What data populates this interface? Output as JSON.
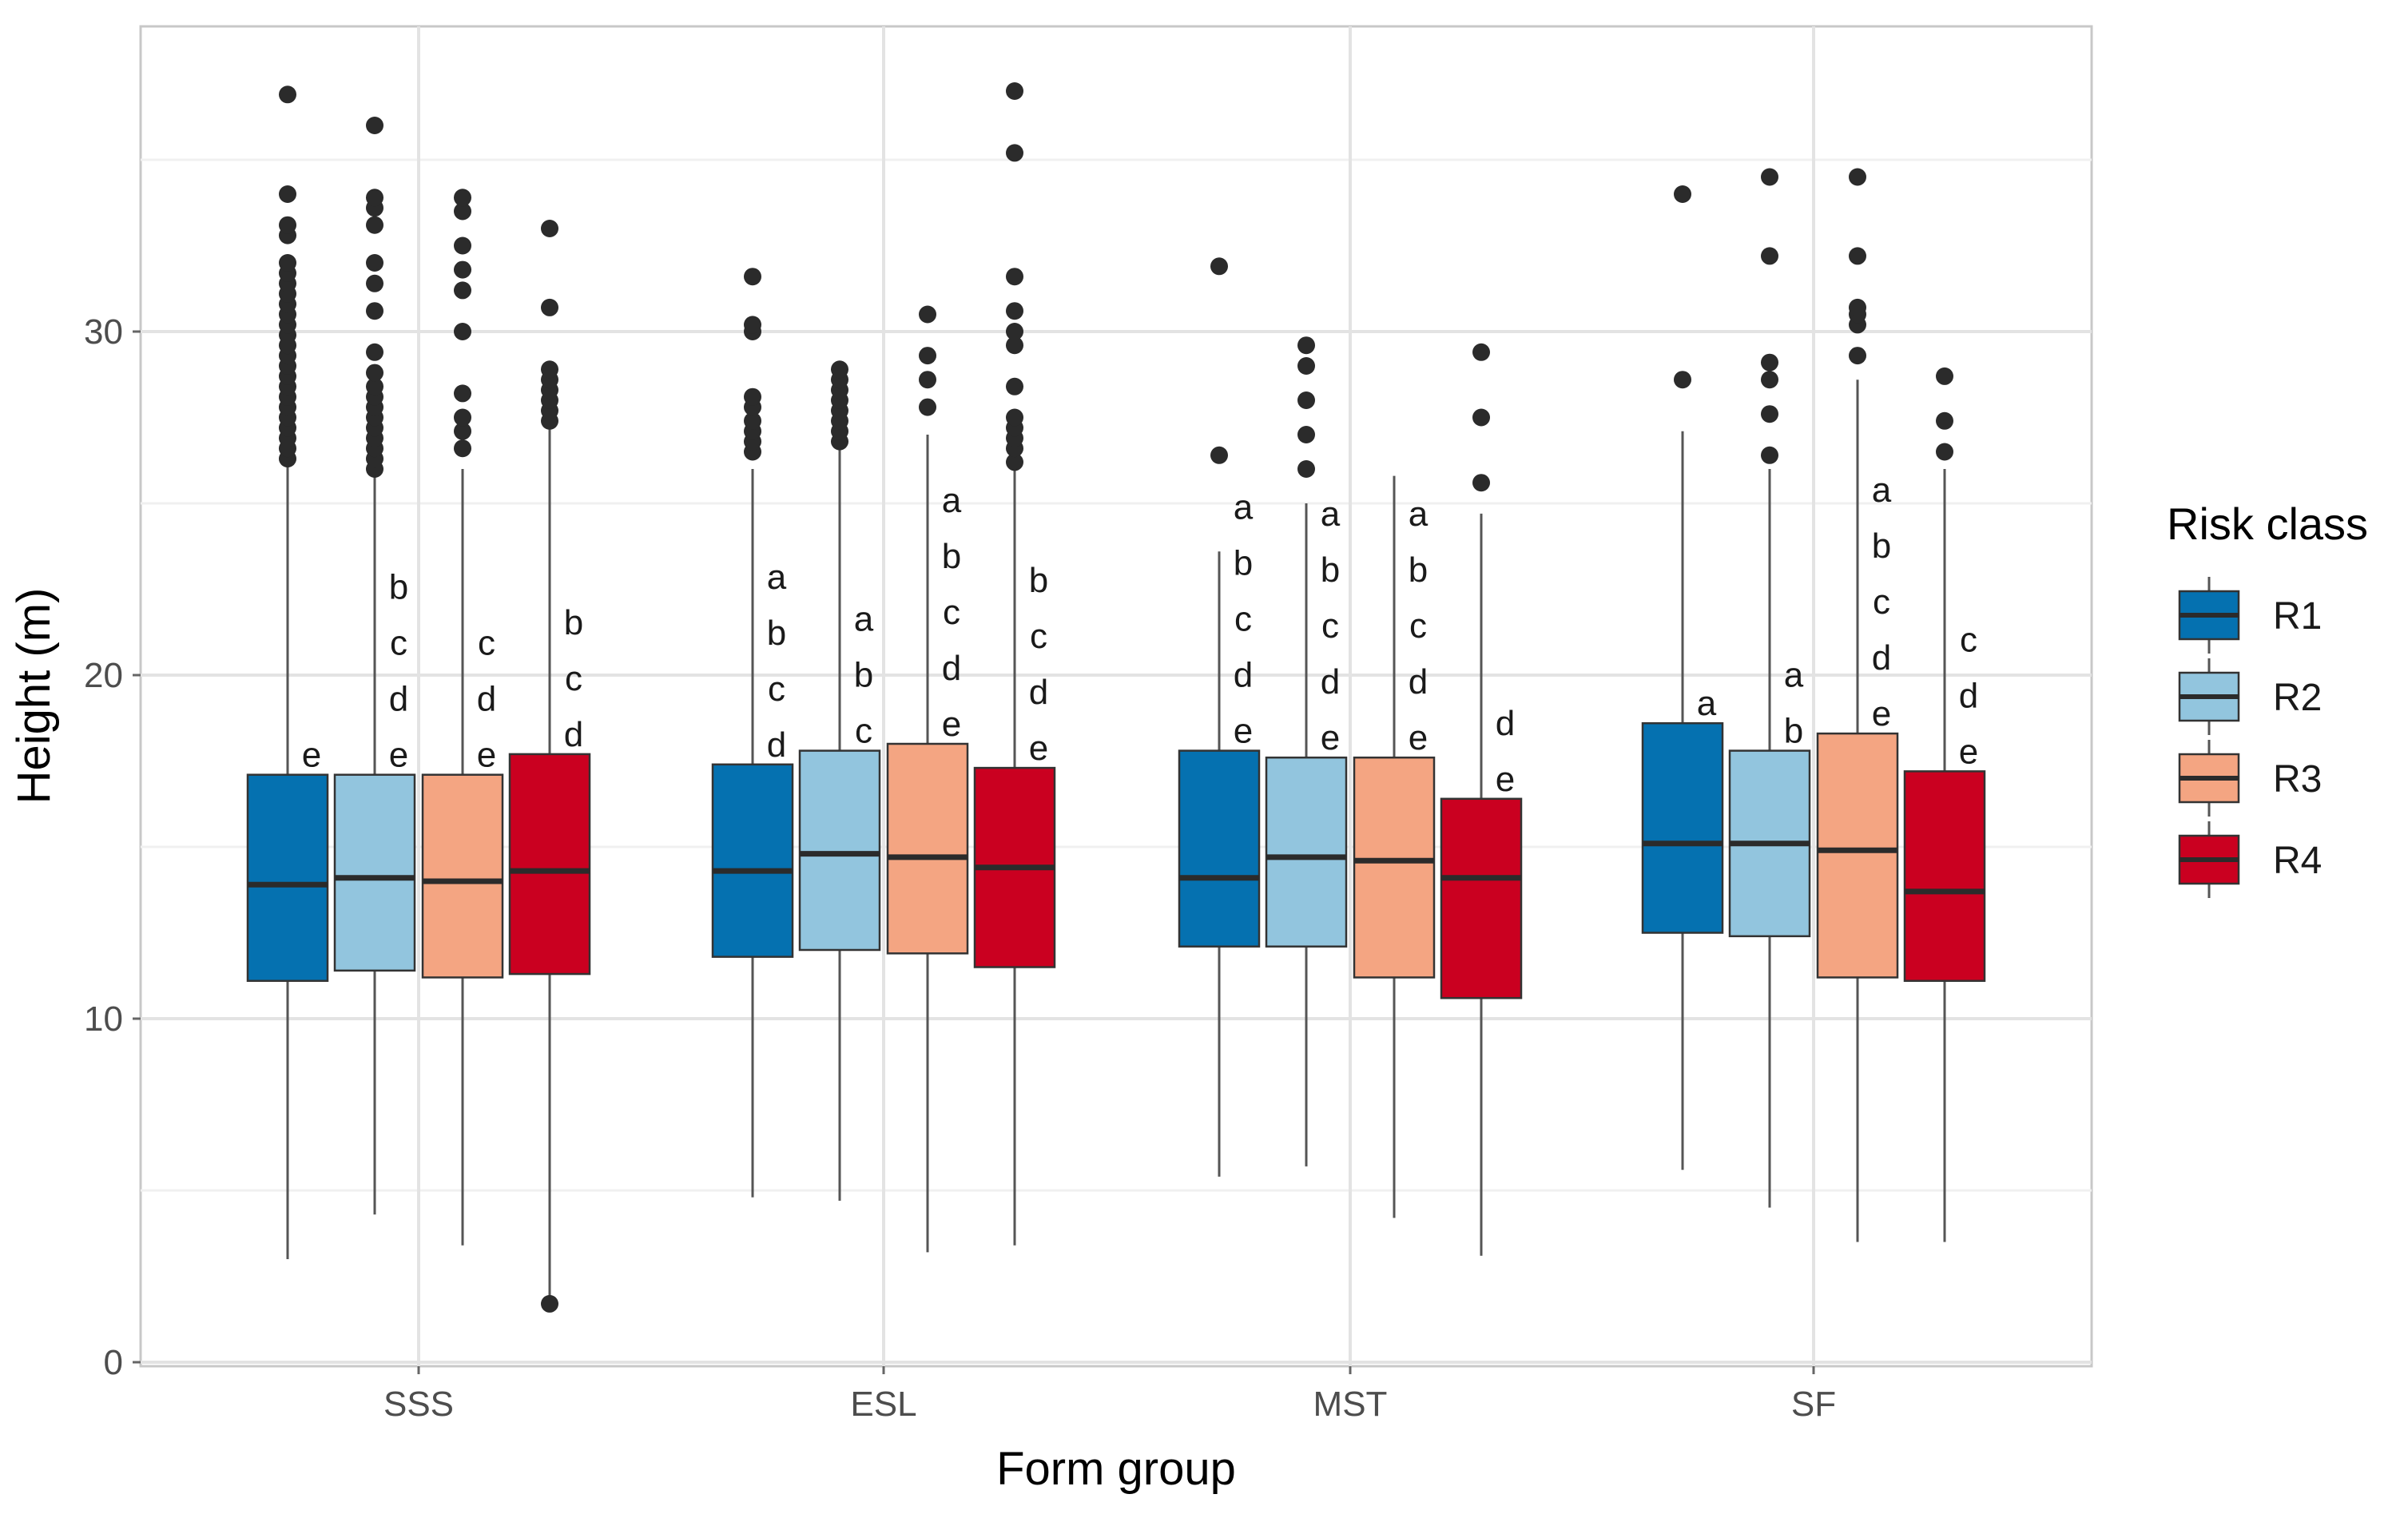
{
  "chart_data": {
    "type": "boxplot",
    "xlabel": "Form group",
    "ylabel": "Height (m)",
    "ylim": [
      0,
      39
    ],
    "yticks": [
      0,
      10,
      20,
      30
    ],
    "categories": [
      "SSS",
      "ESL",
      "MST",
      "SF"
    ],
    "legend": {
      "title": "Risk class",
      "position": "right",
      "items": [
        {
          "name": "R1",
          "color": "#0571b0"
        },
        {
          "name": "R2",
          "color": "#92c5de"
        },
        {
          "name": "R3",
          "color": "#f4a582"
        },
        {
          "name": "R4",
          "color": "#ca0020"
        }
      ]
    },
    "groups": [
      {
        "category": "SSS",
        "boxes": [
          {
            "series": "R1",
            "min": 3.0,
            "q1": 11.1,
            "median": 13.9,
            "q3": 17.1,
            "max": 26.2,
            "letters": [
              "e"
            ],
            "outliers": [
              26.3,
              26.6,
              26.9,
              27.2,
              27.5,
              27.8,
              28.1,
              28.4,
              28.7,
              29.0,
              29.3,
              29.6,
              29.9,
              30.2,
              30.5,
              30.8,
              31.1,
              31.4,
              31.7,
              32.0,
              32.8,
              33.1,
              34.0,
              36.9
            ]
          },
          {
            "series": "R2",
            "min": 4.3,
            "q1": 11.4,
            "median": 14.1,
            "q3": 17.1,
            "max": 25.9,
            "letters": [
              "b",
              "c",
              "d",
              "e"
            ],
            "outliers": [
              26.0,
              26.3,
              26.6,
              26.9,
              27.2,
              27.5,
              27.8,
              28.1,
              28.4,
              28.8,
              29.4,
              30.6,
              31.4,
              32.0,
              33.1,
              33.6,
              33.9,
              36.0
            ]
          },
          {
            "series": "R3",
            "min": 3.4,
            "q1": 11.2,
            "median": 14.0,
            "q3": 17.1,
            "max": 26.0,
            "letters": [
              "c",
              "d",
              "e"
            ],
            "outliers": [
              26.6,
              27.1,
              27.5,
              28.2,
              30.0,
              31.2,
              31.8,
              32.5,
              33.5,
              33.9
            ]
          },
          {
            "series": "R4",
            "min": 1.7,
            "q1": 11.3,
            "median": 14.3,
            "q3": 17.7,
            "max": 27.3,
            "letters": [
              "b",
              "c",
              "d"
            ],
            "outliers": [
              1.7,
              27.4,
              27.7,
              28.0,
              28.3,
              28.6,
              28.9,
              30.7,
              33.0
            ]
          }
        ]
      },
      {
        "category": "ESL",
        "boxes": [
          {
            "series": "R1",
            "min": 4.8,
            "q1": 11.8,
            "median": 14.3,
            "q3": 17.4,
            "max": 26.0,
            "letters": [
              "a",
              "b",
              "c",
              "d"
            ],
            "outliers": [
              26.5,
              26.8,
              27.1,
              27.4,
              27.8,
              28.1,
              30.0,
              30.2,
              31.6
            ]
          },
          {
            "series": "R2",
            "min": 4.7,
            "q1": 12.0,
            "median": 14.8,
            "q3": 17.8,
            "max": 26.6,
            "letters": [
              "a",
              "b",
              "c"
            ],
            "outliers": [
              26.8,
              27.1,
              27.4,
              27.7,
              28.0,
              28.3,
              28.6,
              28.9
            ]
          },
          {
            "series": "R3",
            "min": 3.2,
            "q1": 11.9,
            "median": 14.7,
            "q3": 18.0,
            "max": 27.0,
            "letters": [
              "a",
              "b",
              "c",
              "d",
              "e"
            ],
            "outliers": [
              27.8,
              28.6,
              29.3,
              30.5
            ]
          },
          {
            "series": "R4",
            "min": 3.4,
            "q1": 11.5,
            "median": 14.4,
            "q3": 17.3,
            "max": 26.0,
            "letters": [
              "b",
              "c",
              "d",
              "e"
            ],
            "outliers": [
              26.2,
              26.6,
              26.9,
              27.2,
              27.5,
              28.4,
              29.6,
              30.0,
              30.6,
              31.6,
              35.2,
              37.0
            ]
          }
        ]
      },
      {
        "category": "MST",
        "boxes": [
          {
            "series": "R1",
            "min": 5.4,
            "q1": 12.1,
            "median": 14.1,
            "q3": 17.8,
            "max": 23.6,
            "letters": [
              "a",
              "b",
              "c",
              "d",
              "e"
            ],
            "outliers": [
              26.4,
              31.9
            ]
          },
          {
            "series": "R2",
            "min": 5.7,
            "q1": 12.1,
            "median": 14.7,
            "q3": 17.6,
            "max": 25.0,
            "letters": [
              "a",
              "b",
              "c",
              "d",
              "e"
            ],
            "outliers": [
              26.0,
              27.0,
              28.0,
              29.0,
              29.6
            ]
          },
          {
            "series": "R3",
            "min": 4.2,
            "q1": 11.2,
            "median": 14.6,
            "q3": 17.6,
            "max": 25.8,
            "letters": [
              "a",
              "b",
              "c",
              "d",
              "e"
            ],
            "outliers": []
          },
          {
            "series": "R4",
            "min": 3.1,
            "q1": 10.6,
            "median": 14.1,
            "q3": 16.4,
            "max": 24.7,
            "letters": [
              "d",
              "e"
            ],
            "outliers": [
              25.6,
              27.5,
              29.4
            ]
          }
        ]
      },
      {
        "category": "SF",
        "boxes": [
          {
            "series": "R1",
            "min": 5.6,
            "q1": 12.5,
            "median": 15.1,
            "q3": 18.6,
            "max": 27.1,
            "letters": [
              "a"
            ],
            "outliers": [
              28.6,
              34.0
            ]
          },
          {
            "series": "R2",
            "min": 4.5,
            "q1": 12.4,
            "median": 15.1,
            "q3": 17.8,
            "max": 26.0,
            "letters": [
              "a",
              "b"
            ],
            "outliers": [
              26.4,
              27.6,
              28.6,
              29.1,
              32.2,
              34.5
            ]
          },
          {
            "series": "R3",
            "min": 3.5,
            "q1": 11.2,
            "median": 14.9,
            "q3": 18.3,
            "max": 28.6,
            "letters": [
              "a",
              "b",
              "c",
              "d",
              "e"
            ],
            "outliers": [
              29.3,
              30.2,
              30.5,
              30.7,
              32.2,
              34.5
            ]
          },
          {
            "series": "R4",
            "min": 3.5,
            "q1": 11.1,
            "median": 13.7,
            "q3": 17.2,
            "max": 26.0,
            "letters": [
              "c",
              "d",
              "e"
            ],
            "outliers": [
              26.5,
              27.4,
              28.7
            ]
          }
        ]
      }
    ]
  }
}
